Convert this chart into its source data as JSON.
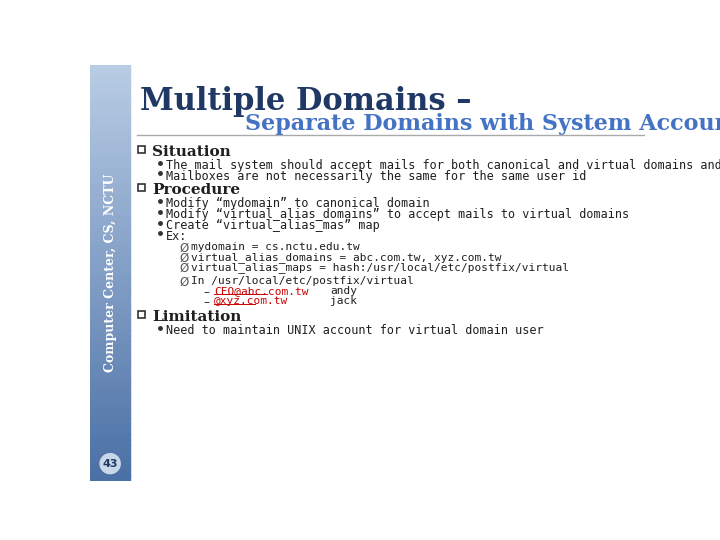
{
  "title1": "Multiple Domains –",
  "title2": "Separate Domains with System Accounts",
  "sidebar_text": "Computer Center, CS, NCTU",
  "title1_color": "#1f3864",
  "title2_color": "#4472c4",
  "section_color": "#1f1f1f",
  "body_color": "#1f1f1f",
  "bg_color": "#ffffff",
  "page_num": "43",
  "sections": [
    {
      "heading": "Situation",
      "bullets": [
        "The mail system should accept mails for both canonical and virtual domains and",
        "Mailboxes are not necessarily the same for the same user id"
      ]
    },
    {
      "heading": "Procedure",
      "bullets": [
        "Modify “mydomain” to canonical domain",
        "Modify “virtual_alias_domains” to accept mails to virtual domains",
        "Create “virtual_alias_mas” map",
        "Ex:"
      ],
      "arrow_items": [
        "mydomain = cs.nctu.edu.tw",
        "virtual_alias_domains = abc.com.tw, xyz.com.tw",
        "virtual_alias_maps = hash:/usr/local/etc/postfix/virtual"
      ],
      "in_line": "In /usr/local/etc/postfix/virtual",
      "email_lines": [
        [
          "CEO@abc.com.tw",
          "andy"
        ],
        [
          "@xyz.com.tw",
          "jack"
        ]
      ]
    },
    {
      "heading": "Limitation",
      "bullets": [
        "Need to maintain UNIX account for virtual domain user"
      ]
    }
  ]
}
